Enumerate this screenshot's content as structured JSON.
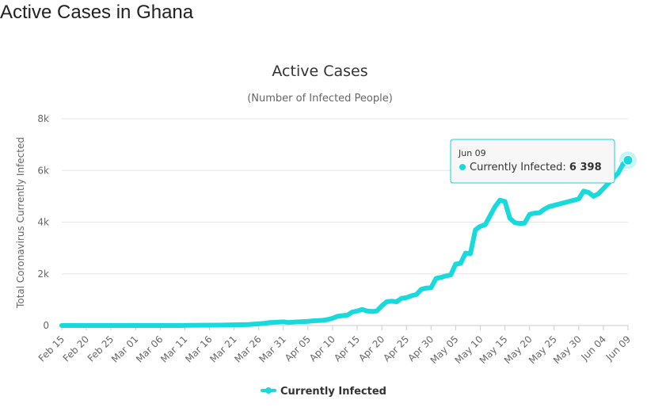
{
  "page": {
    "heading": "Active Cases in Ghana"
  },
  "colors": {
    "series": "#18d9dc",
    "text": "#333333",
    "grid": "#e6e6e6",
    "axis": "#666666"
  },
  "tooltip": {
    "date": "Jun 09",
    "series_name": "Currently Infected",
    "value": "6 398"
  },
  "chart_data": {
    "type": "line",
    "title": "Active Cases",
    "subtitle": "(Number of Infected People)",
    "ylabel": "Total Coronavirus Currently Infected",
    "xlabel": "",
    "ylim": [
      0,
      8000
    ],
    "yticks": [
      0,
      2000,
      4000,
      6000,
      8000
    ],
    "ytick_labels": [
      "0",
      "2k",
      "4k",
      "6k",
      "8k"
    ],
    "x_start": "Feb 15",
    "x_end": "Jun 09",
    "x_tick_labels": [
      "Feb 15",
      "Feb 20",
      "Feb 25",
      "Mar 01",
      "Mar 06",
      "Mar 11",
      "Mar 16",
      "Mar 21",
      "Mar 26",
      "Mar 31",
      "Apr 05",
      "Apr 10",
      "Apr 15",
      "Apr 20",
      "Apr 25",
      "Apr 30",
      "May 05",
      "May 10",
      "May 15",
      "May 20",
      "May 25",
      "May 30",
      "Jun 04",
      "Jun 09"
    ],
    "grid": true,
    "legend": "bottom-center",
    "series": [
      {
        "name": "Currently Infected",
        "x": [
          "Feb 15",
          "Mar 10",
          "Mar 12",
          "Mar 18",
          "Mar 24",
          "Mar 27",
          "Mar 28",
          "Mar 31",
          "Apr 01",
          "Apr 05",
          "Apr 06",
          "Apr 08",
          "Apr 09",
          "Apr 10",
          "Apr 11",
          "Apr 12",
          "Apr 13",
          "Apr 14",
          "Apr 15",
          "Apr 16",
          "Apr 17",
          "Apr 18",
          "Apr 19",
          "Apr 20",
          "Apr 21",
          "Apr 22",
          "Apr 23",
          "Apr 24",
          "Apr 25",
          "Apr 26",
          "Apr 27",
          "Apr 28",
          "Apr 29",
          "Apr 30",
          "May 01",
          "May 02",
          "May 03",
          "May 04",
          "May 05",
          "May 06",
          "May 07",
          "May 08",
          "May 09",
          "May 10",
          "May 11",
          "May 12",
          "May 13",
          "May 14",
          "May 15",
          "May 16",
          "May 17",
          "May 18",
          "May 19",
          "May 20",
          "May 21",
          "May 22",
          "May 23",
          "May 24",
          "May 25",
          "May 26",
          "May 27",
          "May 28",
          "May 29",
          "May 30",
          "May 31",
          "Jun 01",
          "Jun 02",
          "Jun 03",
          "Jun 04",
          "Jun 05",
          "Jun 06",
          "Jun 07",
          "Jun 08",
          "Jun 09"
        ],
        "y": [
          0,
          0,
          5,
          15,
          40,
          80,
          110,
          140,
          120,
          160,
          180,
          200,
          230,
          280,
          360,
          380,
          400,
          520,
          560,
          620,
          560,
          540,
          560,
          760,
          920,
          940,
          920,
          1050,
          1080,
          1150,
          1200,
          1400,
          1450,
          1460,
          1820,
          1860,
          1920,
          1960,
          2380,
          2400,
          2800,
          2780,
          3700,
          3840,
          3900,
          4250,
          4600,
          4850,
          4800,
          4150,
          3980,
          3950,
          3960,
          4300,
          4350,
          4360,
          4500,
          4600,
          4650,
          4700,
          4750,
          4800,
          4850,
          4900,
          5200,
          5150,
          5000,
          5100,
          5300,
          5500,
          5700,
          5900,
          6250,
          6398
        ]
      }
    ]
  }
}
